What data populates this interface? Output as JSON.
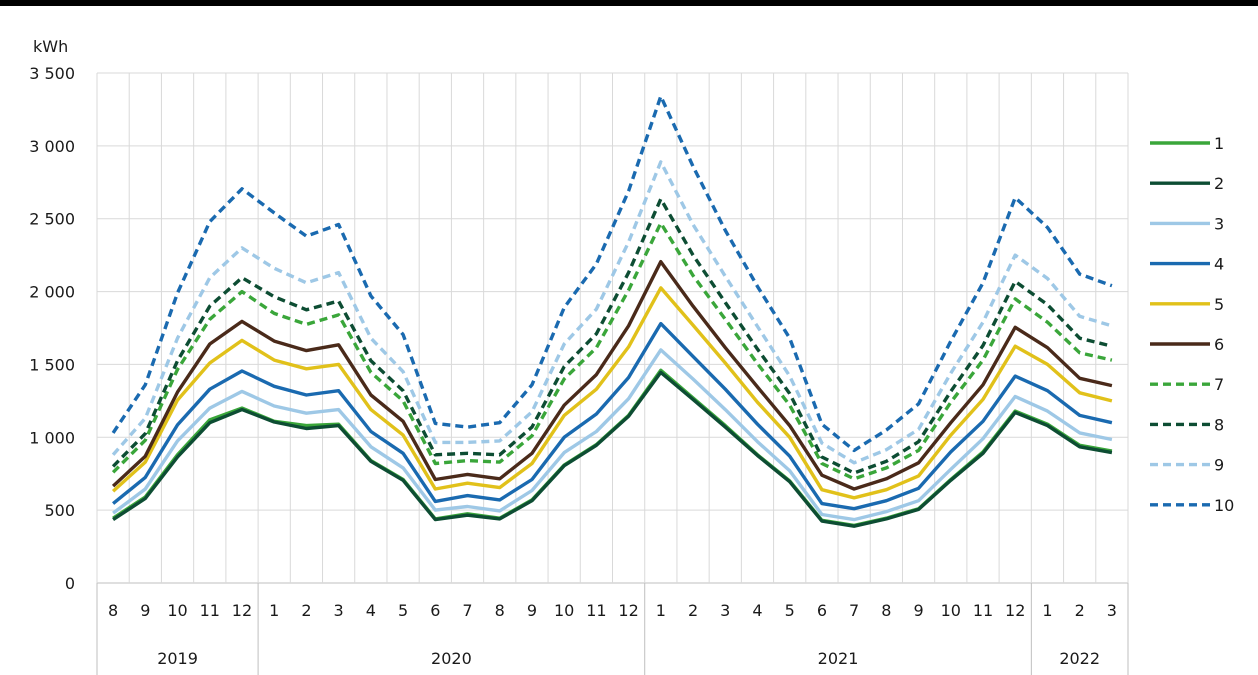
{
  "chart_data": {
    "type": "line",
    "ylabel": "kWh",
    "ylim": [
      0,
      3500
    ],
    "yticks": [
      0,
      500,
      1000,
      1500,
      2000,
      2500,
      3000,
      3500
    ],
    "ytick_labels": [
      "0",
      "500",
      "1 000",
      "1 500",
      "2 000",
      "2 500",
      "3 000",
      "3 500"
    ],
    "grid": true,
    "legend_position": "right",
    "months": [
      "8",
      "9",
      "10",
      "11",
      "12",
      "1",
      "2",
      "3",
      "4",
      "5",
      "6",
      "7",
      "8",
      "9",
      "10",
      "11",
      "12",
      "1",
      "2",
      "3",
      "4",
      "5",
      "6",
      "7",
      "8",
      "9",
      "10",
      "11",
      "12",
      "1",
      "2",
      "3"
    ],
    "years": [
      {
        "label": "2019",
        "start": 0,
        "end": 4
      },
      {
        "label": "2020",
        "start": 5,
        "end": 16
      },
      {
        "label": "2021",
        "start": 17,
        "end": 28
      },
      {
        "label": "2022",
        "start": 29,
        "end": 31
      }
    ],
    "series": [
      {
        "name": "1",
        "color": "#3aa63a",
        "dash": false,
        "values": [
          445,
          590,
          880,
          1120,
          1200,
          1110,
          1080,
          1090,
          840,
          710,
          440,
          475,
          445,
          570,
          810,
          950,
          1150,
          1460,
          1270,
          1080,
          880,
          700,
          430,
          395,
          445,
          510,
          710,
          900,
          1180,
          1090,
          945,
          905
        ]
      },
      {
        "name": "2",
        "color": "#0d4d33",
        "dash": false,
        "values": [
          435,
          580,
          865,
          1100,
          1190,
          1105,
          1060,
          1080,
          835,
          705,
          435,
          465,
          440,
          565,
          805,
          945,
          1145,
          1445,
          1260,
          1070,
          875,
          695,
          425,
          390,
          440,
          505,
          705,
          890,
          1170,
          1080,
          935,
          895
        ]
      },
      {
        "name": "3",
        "color": "#9ec8e6",
        "dash": false,
        "values": [
          480,
          645,
          975,
          1200,
          1315,
          1215,
          1165,
          1190,
          935,
          790,
          500,
          525,
          495,
          635,
          895,
          1040,
          1265,
          1600,
          1400,
          1190,
          970,
          770,
          470,
          435,
          490,
          565,
          780,
          990,
          1280,
          1180,
          1030,
          985
        ]
      },
      {
        "name": "4",
        "color": "#1a6ab0",
        "dash": false,
        "values": [
          545,
          725,
          1085,
          1330,
          1455,
          1350,
          1290,
          1320,
          1040,
          890,
          560,
          600,
          570,
          710,
          1000,
          1160,
          1410,
          1780,
          1555,
          1330,
          1090,
          870,
          545,
          510,
          565,
          650,
          900,
          1110,
          1420,
          1320,
          1150,
          1100
        ]
      },
      {
        "name": "5",
        "color": "#e1c11a",
        "dash": false,
        "values": [
          630,
          830,
          1255,
          1510,
          1665,
          1530,
          1470,
          1500,
          1190,
          1015,
          645,
          685,
          655,
          820,
          1150,
          1330,
          1620,
          2025,
          1770,
          1510,
          1240,
          1000,
          640,
          585,
          640,
          735,
          1015,
          1260,
          1625,
          1500,
          1305,
          1250
        ]
      },
      {
        "name": "6",
        "color": "#4a2a1a",
        "dash": false,
        "values": [
          665,
          870,
          1310,
          1640,
          1795,
          1660,
          1595,
          1635,
          1290,
          1110,
          710,
          745,
          715,
          890,
          1220,
          1430,
          1765,
          2205,
          1900,
          1615,
          1345,
          1080,
          740,
          645,
          715,
          825,
          1100,
          1360,
          1755,
          1615,
          1405,
          1355
        ]
      },
      {
        "name": "7",
        "color": "#3aa63a",
        "dash": true,
        "values": [
          760,
          980,
          1465,
          1810,
          2000,
          1850,
          1775,
          1840,
          1445,
          1250,
          820,
          840,
          830,
          1010,
          1400,
          1615,
          2010,
          2470,
          2110,
          1810,
          1505,
          1220,
          820,
          715,
          790,
          910,
          1240,
          1530,
          1950,
          1790,
          1580,
          1530
        ]
      },
      {
        "name": "8",
        "color": "#0d4d33",
        "dash": true,
        "values": [
          800,
          1025,
          1525,
          1900,
          2095,
          1965,
          1875,
          1935,
          1525,
          1320,
          880,
          890,
          880,
          1070,
          1485,
          1710,
          2130,
          2635,
          2250,
          1925,
          1605,
          1300,
          865,
          755,
          835,
          970,
          1315,
          1630,
          2070,
          1910,
          1680,
          1625
        ]
      },
      {
        "name": "9",
        "color": "#9ec8e6",
        "dash": true,
        "values": [
          880,
          1130,
          1680,
          2095,
          2300,
          2160,
          2060,
          2130,
          1680,
          1450,
          965,
          965,
          975,
          1175,
          1640,
          1880,
          2340,
          2890,
          2460,
          2105,
          1760,
          1420,
          960,
          825,
          915,
          1055,
          1440,
          1790,
          2250,
          2090,
          1830,
          1765
        ]
      },
      {
        "name": "10",
        "color": "#1a6ab0",
        "dash": true,
        "values": [
          1030,
          1360,
          1990,
          2480,
          2705,
          2540,
          2380,
          2460,
          1970,
          1705,
          1095,
          1070,
          1100,
          1360,
          1890,
          2190,
          2690,
          3340,
          2860,
          2420,
          2035,
          1680,
          1090,
          910,
          1050,
          1230,
          1660,
          2060,
          2645,
          2440,
          2120,
          2040
        ]
      }
    ]
  }
}
